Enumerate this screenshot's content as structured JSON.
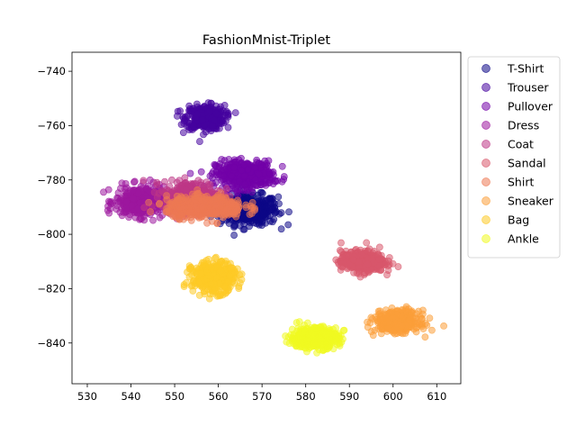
{
  "chart_data": {
    "type": "scatter",
    "title": "FashionMnist-Triplet",
    "xlabel": "",
    "ylabel": "",
    "xlim": [
      526.5,
      615.5
    ],
    "ylim": [
      -855,
      -733
    ],
    "xticks": [
      530,
      540,
      550,
      560,
      570,
      580,
      590,
      600,
      610
    ],
    "yticks": [
      -840,
      -820,
      -800,
      -780,
      -760,
      -740
    ],
    "grid": false,
    "legend_position": "outside-right",
    "marker_alpha": 0.55,
    "series": [
      {
        "name": "T-Shirt",
        "color": "#0d0887",
        "center": [
          567,
          -791
        ],
        "spread": [
          6,
          5
        ],
        "count": 420
      },
      {
        "name": "Trouser",
        "color": "#46039f",
        "center": [
          557,
          -757
        ],
        "spread": [
          4,
          4
        ],
        "count": 380
      },
      {
        "name": "Pullover",
        "color": "#7201a8",
        "center": [
          566,
          -778
        ],
        "spread": [
          6,
          4.5
        ],
        "count": 420
      },
      {
        "name": "Dress",
        "color": "#9c179e",
        "center": [
          542,
          -788
        ],
        "spread": [
          5,
          5
        ],
        "count": 380
      },
      {
        "name": "Coat",
        "color": "#bd3786",
        "center": [
          554,
          -786
        ],
        "spread": [
          6,
          5
        ],
        "count": 400
      },
      {
        "name": "Sandal",
        "color": "#d8576b",
        "center": [
          593,
          -810
        ],
        "spread": [
          4.5,
          3.5
        ],
        "count": 420
      },
      {
        "name": "Shirt",
        "color": "#ed7953",
        "center": [
          557,
          -790
        ],
        "spread": [
          8,
          3.5
        ],
        "count": 480
      },
      {
        "name": "Sneaker",
        "color": "#fb9f3a",
        "center": [
          601,
          -832
        ],
        "spread": [
          4.5,
          3.5
        ],
        "count": 420
      },
      {
        "name": "Bag",
        "color": "#fdca26",
        "center": [
          559,
          -816
        ],
        "spread": [
          4.5,
          5
        ],
        "count": 420
      },
      {
        "name": "Ankle",
        "color": "#f0f921",
        "center": [
          582,
          -838
        ],
        "spread": [
          5,
          3.5
        ],
        "count": 420
      }
    ]
  }
}
